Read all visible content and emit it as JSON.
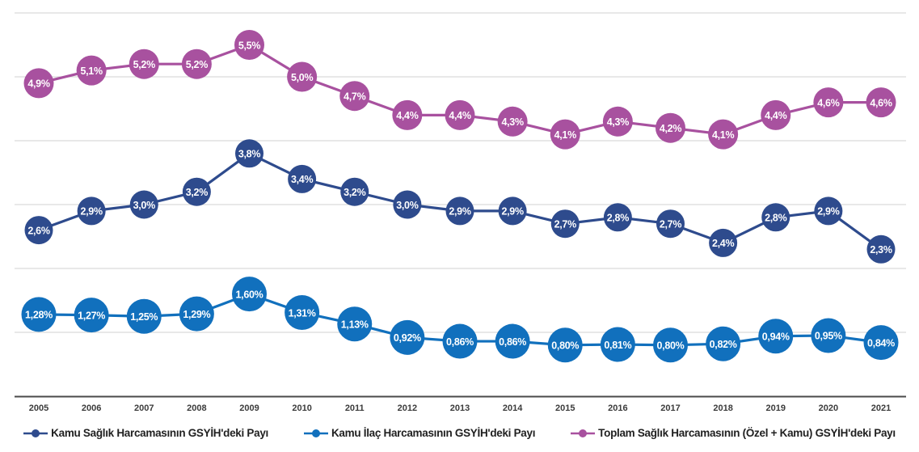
{
  "chart_data": {
    "type": "line",
    "categories": [
      "2005",
      "2006",
      "2007",
      "2008",
      "2009",
      "2010",
      "2011",
      "2012",
      "2013",
      "2014",
      "2015",
      "2016",
      "2017",
      "2018",
      "2019",
      "2020",
      "2021"
    ],
    "series": [
      {
        "name": "Kamu Sağlık Harcamasının GSYİH'deki Payı",
        "color": "#2e4b8d",
        "values": [
          2.6,
          2.9,
          3.0,
          3.2,
          3.8,
          3.4,
          3.2,
          3.0,
          2.9,
          2.9,
          2.7,
          2.8,
          2.7,
          2.4,
          2.8,
          2.9,
          2.3
        ],
        "labels": [
          "2,6%",
          "2,9%",
          "3,0%",
          "3,2%",
          "3,8%",
          "3,4%",
          "3,2%",
          "3,0%",
          "2,9%",
          "2,9%",
          "2,7%",
          "2,8%",
          "2,7%",
          "2,4%",
          "2,8%",
          "2,9%",
          "2,3%"
        ]
      },
      {
        "name": "Kamu İlaç Harcamasının GSYİH'deki Payı",
        "color": "#1170bd",
        "values": [
          1.28,
          1.27,
          1.25,
          1.29,
          1.6,
          1.31,
          1.13,
          0.92,
          0.86,
          0.86,
          0.8,
          0.81,
          0.8,
          0.82,
          0.94,
          0.95,
          0.84
        ],
        "labels": [
          "1,28%",
          "1,27%",
          "1,25%",
          "1,29%",
          "1,60%",
          "1,31%",
          "1,13%",
          "0,92%",
          "0,86%",
          "0,86%",
          "0,80%",
          "0,81%",
          "0,80%",
          "0,82%",
          "0,94%",
          "0,95%",
          "0,84%"
        ]
      },
      {
        "name": "Toplam Sağlık Harcamasının (Özel + Kamu) GSYİH'deki Payı",
        "color": "#a8519f",
        "values": [
          4.9,
          5.1,
          5.2,
          5.2,
          5.5,
          5.0,
          4.7,
          4.4,
          4.4,
          4.3,
          4.1,
          4.3,
          4.2,
          4.1,
          4.4,
          4.6,
          4.6
        ],
        "labels": [
          "4,9%",
          "5,1%",
          "5,2%",
          "5,2%",
          "5,5%",
          "5,0%",
          "4,7%",
          "4,4%",
          "4,4%",
          "4,3%",
          "4,1%",
          "4,3%",
          "4,2%",
          "4,1%",
          "4,4%",
          "4,6%",
          "4,6%"
        ]
      }
    ],
    "title": "",
    "xlabel": "",
    "ylabel": "",
    "ylim": [
      0,
      6
    ],
    "grid": true,
    "gridline_step": 1,
    "legend_position": "bottom",
    "label_decimal_separator": ","
  },
  "colors": {
    "gridline": "#d9d9d9",
    "axis_line": "#4a4a4a",
    "tick_label": "#3b3b3b",
    "marker_label": "#ffffff",
    "background": "#ffffff"
  }
}
